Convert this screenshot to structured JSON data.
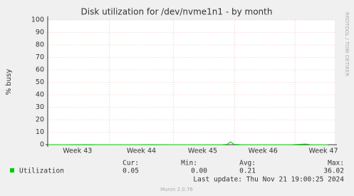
{
  "chart_data": {
    "type": "line",
    "title": "Disk utilization for /dev/nvme1n1 - by month",
    "y_label": "% busy",
    "side_label": "RRDTOOL / TOBI OETIKER",
    "xlim": [
      0,
      32.8
    ],
    "xticks": [
      {
        "value": 3.4,
        "label": "Week 43"
      },
      {
        "value": 10.7,
        "label": "Week 44"
      },
      {
        "value": 17.7,
        "label": "Week 45"
      },
      {
        "value": 24.6,
        "label": "Week 46"
      },
      {
        "value": 31.5,
        "label": "Week 47"
      }
    ],
    "ylim": [
      0,
      100
    ],
    "yticks": [
      0,
      10,
      20,
      30,
      40,
      50,
      60,
      70,
      80,
      90,
      100
    ],
    "grid": true,
    "x": [
      0,
      2,
      4,
      6,
      8,
      10,
      12,
      14,
      16,
      18,
      20,
      20.5,
      20.9,
      21.3,
      22,
      24,
      26,
      28,
      29.5,
      30,
      32
    ],
    "series": [
      {
        "name": "Utilization",
        "color": "#00cc00",
        "values": [
          0,
          0,
          0.1,
          0,
          0,
          0,
          0.1,
          0,
          0,
          0,
          0.1,
          0.3,
          2.2,
          0.3,
          0.1,
          0,
          0,
          0.1,
          0.5,
          0.1,
          0
        ]
      }
    ],
    "legend_stats": {
      "headers": [
        "Cur:",
        "Min:",
        "Avg:",
        "Max:"
      ],
      "values": [
        "0.05",
        "0.00",
        "0.21",
        "36.02"
      ]
    },
    "last_update": "Last update: Thu Nov 21 19:00:25 2024",
    "footer": "Munin 2.0.76"
  }
}
